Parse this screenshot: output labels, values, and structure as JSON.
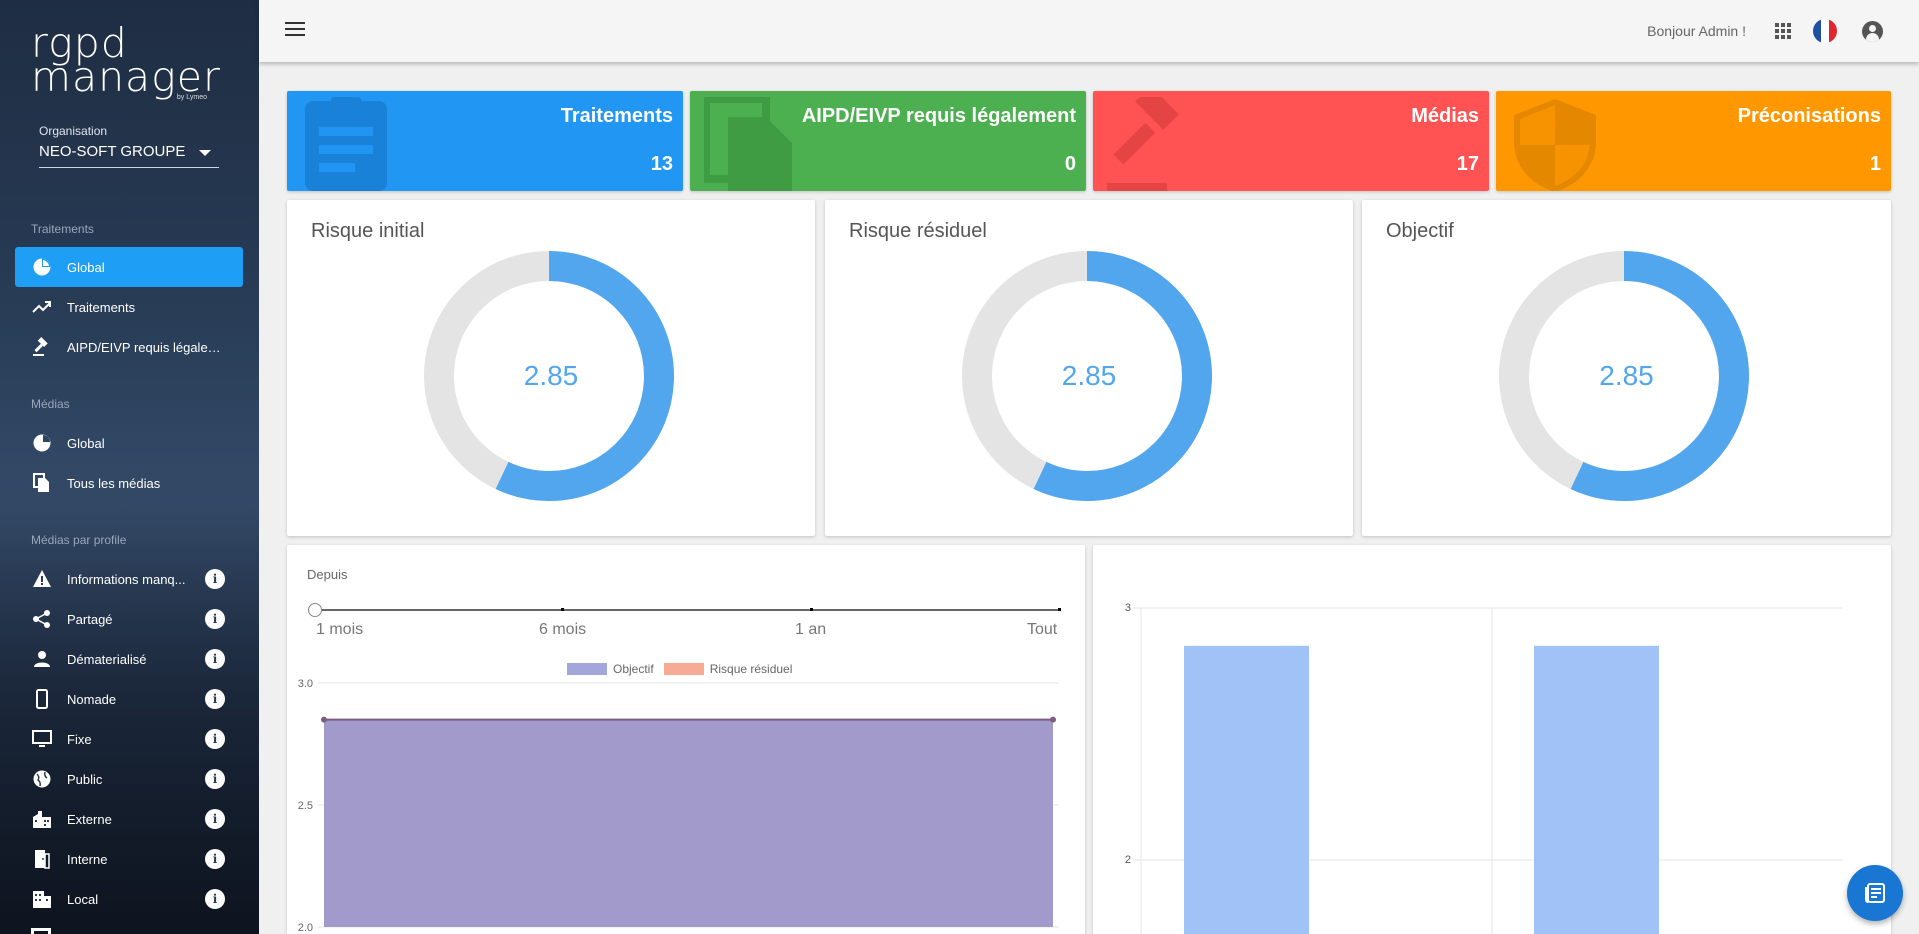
{
  "sidebar": {
    "logo_line1": "rgpd",
    "logo_line2": "manager",
    "logo_by": "by Lymeo",
    "org_label": "Organisation",
    "org_value": "NEO-SOFT GROUPE",
    "sections": [
      {
        "title": "Traitements"
      },
      {
        "title": "Médias"
      },
      {
        "title": "Médias par profile"
      }
    ],
    "items": [
      {
        "label": "Global",
        "icon": "pie-chart-icon"
      },
      {
        "label": "Traitements",
        "icon": "trending-up-icon"
      },
      {
        "label": "AIPD/EIVP requis légalem...",
        "icon": "gavel-icon"
      },
      {
        "label": "Global",
        "icon": "pie-chart-icon"
      },
      {
        "label": "Tous les médias",
        "icon": "files-icon"
      },
      {
        "label": "Informations manq...",
        "icon": "warning-icon"
      },
      {
        "label": "Partagé",
        "icon": "share-icon"
      },
      {
        "label": "Dématerialisé",
        "icon": "person-icon"
      },
      {
        "label": "Nomade",
        "icon": "phone-icon"
      },
      {
        "label": "Fixe",
        "icon": "monitor-icon"
      },
      {
        "label": "Public",
        "icon": "globe-icon"
      },
      {
        "label": "Externe",
        "icon": "building-icon"
      },
      {
        "label": "Interne",
        "icon": "door-icon"
      },
      {
        "label": "Local",
        "icon": "city-icon"
      }
    ]
  },
  "topbar": {
    "greeting": "Bonjour Admin !"
  },
  "stats": [
    {
      "title": "Traitements",
      "count": "13",
      "color": "#2196f3",
      "icon": "clipboard-icon"
    },
    {
      "title": "AIPD/EIVP requis légalement",
      "count": "0",
      "color": "#4caf50",
      "icon": "document-icon"
    },
    {
      "title": "Médias",
      "count": "17",
      "color": "#ff5252",
      "icon": "gavel-icon"
    },
    {
      "title": "Préconisations",
      "count": "1",
      "color": "#ff9800",
      "icon": "shield-icon"
    }
  ],
  "gauges": [
    {
      "title": "Risque initial",
      "value": "2.85",
      "fraction": 0.57
    },
    {
      "title": "Risque résiduel",
      "value": "2.85",
      "fraction": 0.57
    },
    {
      "title": "Objectif",
      "value": "2.85",
      "fraction": 0.57
    }
  ],
  "area_chart": {
    "depuis_label": "Depuis",
    "range_options": [
      "1 mois",
      "6 mois",
      "1 an",
      "Tout"
    ],
    "legend": [
      {
        "name": "Objectif",
        "color": "#a3a6db"
      },
      {
        "name": "Risque résiduel",
        "color": "#f7ab94"
      }
    ],
    "y_ticks": [
      "3.0",
      "2.5",
      "2.0"
    ]
  },
  "chart_data": [
    {
      "type": "area",
      "ylim": [
        2.0,
        3.0
      ],
      "series": [
        {
          "name": "Objectif",
          "values": [
            2.85,
            2.85
          ]
        },
        {
          "name": "Risque résiduel",
          "values": [
            2.85,
            2.85
          ]
        }
      ]
    },
    {
      "type": "bar",
      "y_ticks": [
        "3",
        "2"
      ],
      "values": [
        2.85,
        2.85
      ],
      "color": "#a0c2f7"
    }
  ]
}
